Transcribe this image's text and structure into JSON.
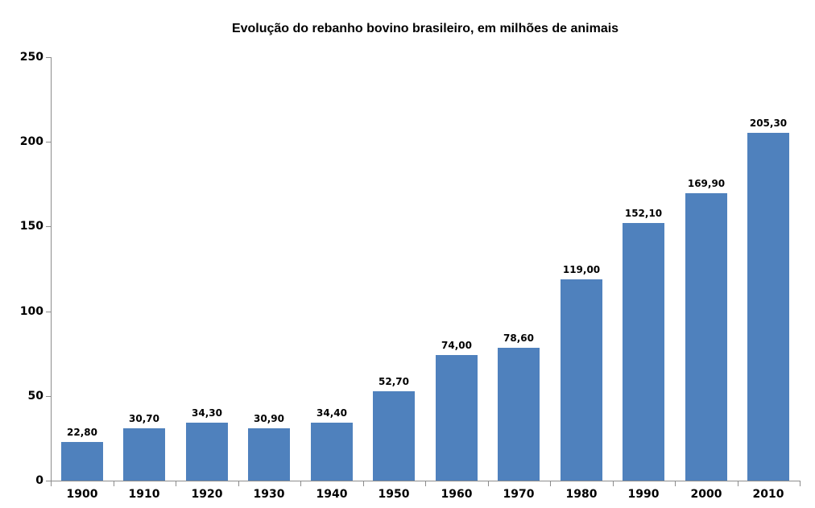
{
  "chart_data": {
    "type": "bar",
    "title": "Evolução do rebanho bovino brasileiro, em milhões de animais",
    "categories": [
      "1900",
      "1910",
      "1920",
      "1930",
      "1940",
      "1950",
      "1960",
      "1970",
      "1980",
      "1990",
      "2000",
      "2010"
    ],
    "values": [
      22.8,
      30.7,
      34.3,
      30.9,
      34.4,
      52.7,
      74.0,
      78.6,
      119.0,
      152.1,
      169.9,
      205.3
    ],
    "value_labels": [
      "22,80",
      "30,70",
      "34,30",
      "30,90",
      "34,40",
      "52,70",
      "74,00",
      "78,60",
      "119,00",
      "152,10",
      "169,90",
      "205,30"
    ],
    "xlabel": "",
    "ylabel": "",
    "ylim": [
      0,
      250
    ],
    "y_ticks": [
      0,
      50,
      100,
      150,
      200,
      250
    ],
    "y_tick_labels": [
      "0",
      "50",
      "100",
      "150",
      "200",
      "250"
    ],
    "grid": false,
    "legend": false,
    "bar_color": "#4F81BD",
    "axis_color": "#8C8C8C",
    "background_color": "#FFFFFF",
    "text_color": "#000000"
  }
}
